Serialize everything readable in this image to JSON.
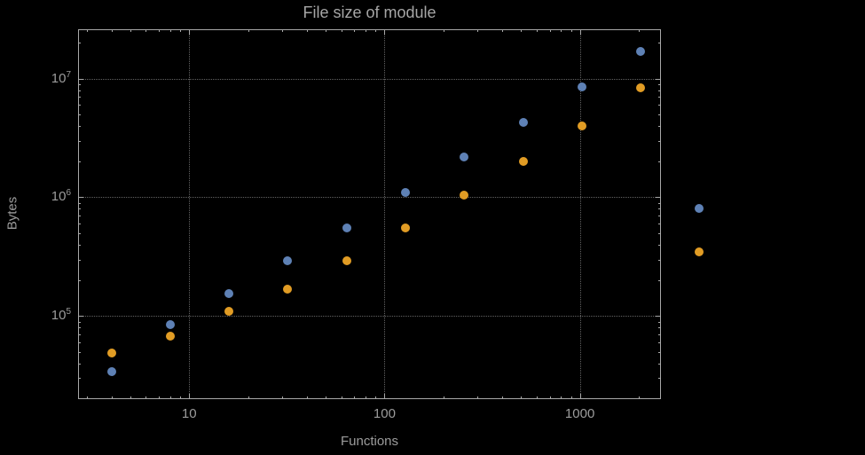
{
  "chart_data": {
    "type": "scatter",
    "title": "File size of module",
    "xlabel": "Functions",
    "ylabel": "Bytes",
    "x_scale": "log",
    "y_scale": "log",
    "xlim": [
      2.7,
      2600
    ],
    "ylim": [
      20000,
      26000000
    ],
    "grid": true,
    "legend": "none",
    "x_ticks": [
      {
        "v": 10,
        "label": "10"
      },
      {
        "v": 100,
        "label": "100"
      },
      {
        "v": 1000,
        "label": "1000"
      }
    ],
    "y_ticks": [
      {
        "v": 100000,
        "base": "10",
        "exp": "5"
      },
      {
        "v": 1000000,
        "base": "10",
        "exp": "6"
      },
      {
        "v": 10000000,
        "base": "10",
        "exp": "7"
      }
    ],
    "minor_ticks": {
      "x_decades": [
        1,
        10,
        100,
        1000
      ],
      "y_decades": [
        10000,
        100000,
        1000000,
        10000000
      ]
    },
    "series": [
      {
        "name": "series-blue",
        "color": "#5e81b5",
        "points": [
          [
            4,
            34000
          ],
          [
            8,
            85000
          ],
          [
            16,
            155000
          ],
          [
            32,
            290000
          ],
          [
            64,
            550000
          ],
          [
            128,
            1100000
          ],
          [
            256,
            2200000
          ],
          [
            512,
            4300000
          ],
          [
            1024,
            8500000
          ],
          [
            2048,
            17000000
          ],
          [
            4096,
            800000
          ]
        ]
      },
      {
        "name": "series-orange",
        "color": "#e19c24",
        "points": [
          [
            4,
            49000
          ],
          [
            8,
            68000
          ],
          [
            16,
            110000
          ],
          [
            32,
            170000
          ],
          [
            64,
            290000
          ],
          [
            128,
            550000
          ],
          [
            256,
            1050000
          ],
          [
            512,
            2000000
          ],
          [
            1024,
            4000000
          ],
          [
            2048,
            8300000
          ],
          [
            4096,
            350000
          ]
        ]
      }
    ],
    "style": {
      "background": "#000000",
      "text_color": "#9c9c9c",
      "frame_color": "#a8a8a8",
      "grid_color": "#636363"
    }
  }
}
